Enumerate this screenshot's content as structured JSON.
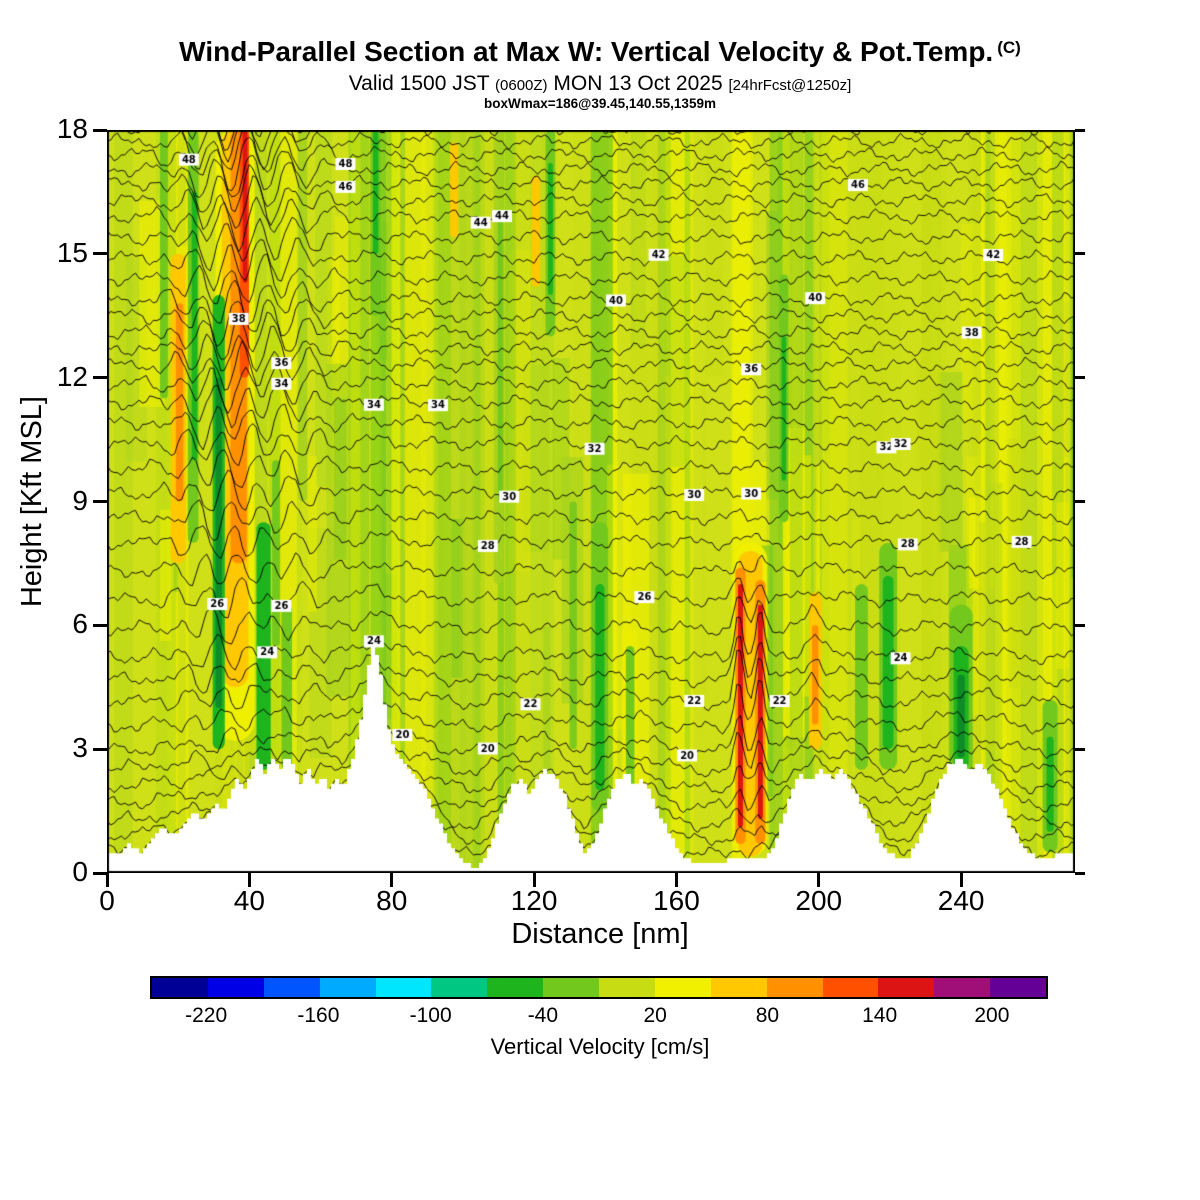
{
  "header": {
    "title_main": "Wind-Parallel Section at Max W: Vertical Velocity & Pot.Temp.",
    "title_unit": "(C)",
    "valid_pre": "Valid 1500 JST",
    "valid_small1": "(0600Z)",
    "valid_mid": "MON 13 Oct 2025",
    "valid_small2": "[24hrFcst@1250z]",
    "annotation": "boxWmax=186@39.45,140.55,1359m"
  },
  "chart_data": {
    "type": "heatmap",
    "title": "Wind-Parallel Section at Max W: Vertical Velocity & Pot.Temp. (C)",
    "subtitle": "Valid 1500 JST (0600Z) MON 13 Oct 2025 [24hrFcst@1250z]",
    "annotation": "boxWmax=186@39.45,140.55,1359m",
    "xlabel": "Distance [nm]",
    "ylabel": "Height [Kft MSL]",
    "xlim": [
      0,
      272
    ],
    "ylim": [
      0,
      18
    ],
    "xticks": [
      0,
      40,
      80,
      120,
      160,
      200,
      240
    ],
    "yticks": [
      0,
      3,
      6,
      9,
      12,
      15,
      18
    ],
    "fill_field": "Vertical Velocity [cm/s]",
    "contour_field": "Potential Temperature [C]",
    "wmax": {
      "value": 186,
      "lat": 39.45,
      "lon": 140.55,
      "height_m": 1359
    },
    "colorbar": {
      "label": "Vertical Velocity [cm/s]",
      "tick_values": [
        -220,
        -160,
        -100,
        -40,
        20,
        80,
        140,
        200
      ],
      "boundary_min": -250,
      "boundary_step": 30,
      "colors": [
        "#000096",
        "#0000E6",
        "#0055FF",
        "#00AAFF",
        "#00E6FF",
        "#00C882",
        "#1EB41E",
        "#73C81E",
        "#C8DC14",
        "#F0F000",
        "#FFC800",
        "#FF9100",
        "#FF5000",
        "#DC1414",
        "#A00F78",
        "#640096"
      ]
    },
    "background_colors": {
      "base": "#CFE018",
      "stripe_yellow": "#F0F000",
      "stripe_yellowgreen": "#C8DC14",
      "stripe_lightgreen": "#A5D21E",
      "stripe_green": "#73C81E"
    },
    "contours": {
      "theta_min": 14,
      "theta_max": 52,
      "interval": 1,
      "label_interval": 2,
      "label_min": 20,
      "theta_z_anchors": [
        [
          14,
          0.35
        ],
        [
          16,
          1.1
        ],
        [
          18,
          2.0
        ],
        [
          20,
          2.9
        ],
        [
          22,
          4.1
        ],
        [
          24,
          5.2
        ],
        [
          26,
          6.6
        ],
        [
          28,
          8.0
        ],
        [
          30,
          9.2
        ],
        [
          32,
          10.4
        ],
        [
          34,
          11.4
        ],
        [
          36,
          12.3
        ],
        [
          38,
          13.1
        ],
        [
          40,
          13.9
        ],
        [
          42,
          14.9
        ],
        [
          44,
          15.9
        ],
        [
          46,
          16.7
        ],
        [
          48,
          17.4
        ],
        [
          50,
          18.05
        ],
        [
          52,
          18.7
        ]
      ]
    },
    "terrain_profile": [
      [
        0,
        0.5
      ],
      [
        3,
        0.45
      ],
      [
        6,
        0.7
      ],
      [
        9,
        0.5
      ],
      [
        12,
        0.8
      ],
      [
        15,
        1.1
      ],
      [
        18,
        0.9
      ],
      [
        21,
        1.2
      ],
      [
        24,
        1.5
      ],
      [
        27,
        1.3
      ],
      [
        30,
        1.7
      ],
      [
        32,
        1.5
      ],
      [
        34,
        1.9
      ],
      [
        36,
        2.3
      ],
      [
        38,
        2.0
      ],
      [
        40,
        2.5
      ],
      [
        42,
        2.8
      ],
      [
        44,
        2.4
      ],
      [
        46,
        2.8
      ],
      [
        48,
        2.5
      ],
      [
        50,
        2.9
      ],
      [
        52,
        2.6
      ],
      [
        54,
        2.2
      ],
      [
        56,
        2.6
      ],
      [
        58,
        2.1
      ],
      [
        60,
        2.4
      ],
      [
        62,
        2.0
      ],
      [
        64,
        2.3
      ],
      [
        66,
        2.1
      ],
      [
        68,
        2.6
      ],
      [
        70,
        3.3
      ],
      [
        72,
        4.4
      ],
      [
        74,
        5.6
      ],
      [
        76,
        5.1
      ],
      [
        78,
        3.8
      ],
      [
        80,
        3.0
      ],
      [
        83,
        2.7
      ],
      [
        86,
        2.4
      ],
      [
        89,
        2.0
      ],
      [
        92,
        1.4
      ],
      [
        95,
        0.8
      ],
      [
        98,
        0.4
      ],
      [
        101,
        0.2
      ],
      [
        104,
        0.15
      ],
      [
        107,
        0.6
      ],
      [
        110,
        1.4
      ],
      [
        113,
        2.1
      ],
      [
        116,
        2.3
      ],
      [
        118,
        1.9
      ],
      [
        120,
        2.2
      ],
      [
        122,
        2.5
      ],
      [
        125,
        2.4
      ],
      [
        128,
        1.9
      ],
      [
        131,
        1.1
      ],
      [
        134,
        0.45
      ],
      [
        137,
        0.9
      ],
      [
        140,
        1.7
      ],
      [
        143,
        2.3
      ],
      [
        146,
        2.4
      ],
      [
        148,
        2.1
      ],
      [
        150,
        2.3
      ],
      [
        153,
        1.8
      ],
      [
        156,
        1.2
      ],
      [
        159,
        0.7
      ],
      [
        162,
        0.35
      ],
      [
        166,
        0.2
      ],
      [
        170,
        0.25
      ],
      [
        174,
        0.3
      ],
      [
        178,
        0.3
      ],
      [
        182,
        0.3
      ],
      [
        186,
        0.5
      ],
      [
        189,
        1.2
      ],
      [
        192,
        2.0
      ],
      [
        194,
        2.4
      ],
      [
        197,
        2.2
      ],
      [
        200,
        2.5
      ],
      [
        203,
        2.3
      ],
      [
        206,
        2.5
      ],
      [
        209,
        2.1
      ],
      [
        212,
        1.6
      ],
      [
        215,
        1.1
      ],
      [
        218,
        0.6
      ],
      [
        221,
        0.4
      ],
      [
        224,
        0.3
      ],
      [
        227,
        0.7
      ],
      [
        230,
        1.4
      ],
      [
        233,
        2.1
      ],
      [
        236,
        2.6
      ],
      [
        239,
        2.85
      ],
      [
        242,
        2.5
      ],
      [
        245,
        2.7
      ],
      [
        248,
        2.3
      ],
      [
        251,
        1.7
      ],
      [
        254,
        1.1
      ],
      [
        257,
        0.6
      ],
      [
        260,
        0.4
      ],
      [
        264,
        0.38
      ],
      [
        268,
        0.45
      ],
      [
        272,
        0.5
      ]
    ],
    "features": [
      {
        "kind": "updraft-halo",
        "x": 36,
        "w": 11,
        "zb": 3.2,
        "zt": 18,
        "c": "#F0F000",
        "a": 0.95
      },
      {
        "kind": "updraft",
        "x": 36,
        "w": 7.5,
        "zb": 4.5,
        "zt": 18,
        "c": "#FFC800",
        "a": 1
      },
      {
        "kind": "updraft",
        "x": 37,
        "w": 4.6,
        "zb": 7.5,
        "zt": 18,
        "c": "#FF9100",
        "a": 1
      },
      {
        "kind": "updraft-core",
        "x": 38.6,
        "w": 2.6,
        "zb": 12,
        "zt": 18,
        "c": "#FF5000",
        "a": 1
      },
      {
        "kind": "updraft-core",
        "x": 38.8,
        "w": 1.3,
        "zb": 14.3,
        "zt": 18,
        "c": "#DC1414",
        "a": 1
      },
      {
        "kind": "updraft",
        "x": 20,
        "w": 4.2,
        "zb": 7.5,
        "zt": 15,
        "c": "#FFC800",
        "a": 1
      },
      {
        "kind": "updraft",
        "x": 20.4,
        "w": 2.1,
        "zb": 9,
        "zt": 13.8,
        "c": "#FF9100",
        "a": 1
      },
      {
        "kind": "downdraft",
        "x": 16,
        "w": 2.2,
        "zb": 11.5,
        "zt": 18,
        "c": "#73C81E",
        "a": 1
      },
      {
        "kind": "downdraft",
        "x": 24.2,
        "w": 3.0,
        "zb": 8,
        "zt": 18,
        "c": "#73C81E",
        "a": 1
      },
      {
        "kind": "downdraft",
        "x": 24.6,
        "w": 1.6,
        "zb": 10,
        "zt": 16.5,
        "c": "#1EB41E",
        "a": 1
      },
      {
        "kind": "downdraft",
        "x": 31.4,
        "w": 3.4,
        "zb": 3,
        "zt": 14,
        "c": "#1EB41E",
        "a": 1
      },
      {
        "kind": "downdraft",
        "x": 31.4,
        "w": 1.8,
        "zb": 4,
        "zt": 12,
        "c": "#0F8C28",
        "a": 1
      },
      {
        "kind": "downdraft",
        "x": 44,
        "w": 4,
        "zb": 2.5,
        "zt": 8.5,
        "c": "#1EB41E",
        "a": 1
      },
      {
        "kind": "downdraft",
        "x": 47.5,
        "w": 2.2,
        "zb": 5.5,
        "zt": 10,
        "c": "#73C81E",
        "a": 1
      },
      {
        "kind": "downdraft",
        "x": 50.5,
        "w": 3,
        "zb": 2.5,
        "zt": 6.5,
        "c": "#73C81E",
        "a": 1
      },
      {
        "kind": "downdraft",
        "x": 55,
        "w": 2.5,
        "zb": 9,
        "zt": 18,
        "c": "#A5D21E",
        "a": 0.9
      },
      {
        "kind": "downdraft",
        "x": 75.5,
        "w": 3,
        "zb": 13.5,
        "zt": 18,
        "c": "#73C81E",
        "a": 1
      },
      {
        "kind": "downdraft",
        "x": 75.5,
        "w": 1.5,
        "zb": 15,
        "zt": 18,
        "c": "#1EB41E",
        "a": 1
      },
      {
        "kind": "updraft",
        "x": 97.5,
        "w": 2.3,
        "zb": 15.4,
        "zt": 17.7,
        "c": "#FFC800",
        "a": 1
      },
      {
        "kind": "downdraft",
        "x": 110,
        "w": 2.6,
        "zb": 7,
        "zt": 18,
        "c": "#A5D21E",
        "a": 0.9
      },
      {
        "kind": "downdraft",
        "x": 110.5,
        "w": 1.4,
        "zb": 9,
        "zt": 16,
        "c": "#73C81E",
        "a": 1
      },
      {
        "kind": "updraft",
        "x": 120.5,
        "w": 2.4,
        "zb": 14.2,
        "zt": 16.9,
        "c": "#FFC800",
        "a": 1
      },
      {
        "kind": "downdraft",
        "x": 124.6,
        "w": 2.7,
        "zb": 13,
        "zt": 18,
        "c": "#73C81E",
        "a": 1
      },
      {
        "kind": "downdraft",
        "x": 124.6,
        "w": 1.4,
        "zb": 14,
        "zt": 17.2,
        "c": "#1EB41E",
        "a": 1
      },
      {
        "kind": "downdraft",
        "x": 131,
        "w": 2,
        "zb": 3,
        "zt": 9,
        "c": "#73C81E",
        "a": 0.9
      },
      {
        "kind": "downdraft",
        "x": 138.5,
        "w": 4.6,
        "zb": 1.5,
        "zt": 8.5,
        "c": "#73C81E",
        "a": 1
      },
      {
        "kind": "downdraft",
        "x": 138.5,
        "w": 2.6,
        "zb": 2,
        "zt": 7,
        "c": "#1EB41E",
        "a": 1
      },
      {
        "kind": "downdraft",
        "x": 147,
        "w": 2.4,
        "zb": 2,
        "zt": 5.5,
        "c": "#73C81E",
        "a": 1
      },
      {
        "kind": "updraft-halo",
        "x": 180.8,
        "w": 9.5,
        "zb": 0.4,
        "zt": 8,
        "c": "#F0F000",
        "a": 0.95
      },
      {
        "kind": "updraft",
        "x": 180.8,
        "w": 6.8,
        "zb": 0.4,
        "zt": 7.8,
        "c": "#FFC800",
        "a": 1
      },
      {
        "kind": "updraft",
        "x": 178,
        "w": 2.9,
        "zb": 0.7,
        "zt": 7.4,
        "c": "#FF9100",
        "a": 1
      },
      {
        "kind": "updraft",
        "x": 183.6,
        "w": 2.9,
        "zb": 0.7,
        "zt": 7.1,
        "c": "#FF9100",
        "a": 1
      },
      {
        "kind": "updraft-core",
        "x": 178,
        "w": 1.4,
        "zb": 1.1,
        "zt": 7.0,
        "c": "#DC1414",
        "a": 1
      },
      {
        "kind": "updraft-core",
        "x": 183.6,
        "w": 1.4,
        "zb": 1.3,
        "zt": 6.5,
        "c": "#DC1414",
        "a": 1
      },
      {
        "kind": "downdraft",
        "x": 188.8,
        "w": 2,
        "zb": 0.4,
        "zt": 8,
        "c": "#A5D21E",
        "a": 0.9
      },
      {
        "kind": "downdraft",
        "x": 190.2,
        "w": 2.6,
        "zb": 8.5,
        "zt": 14.5,
        "c": "#73C81E",
        "a": 1
      },
      {
        "kind": "downdraft",
        "x": 190.2,
        "w": 1.3,
        "zb": 9.5,
        "zt": 13,
        "c": "#1EB41E",
        "a": 1
      },
      {
        "kind": "updraft",
        "x": 199,
        "w": 3.6,
        "zb": 3,
        "zt": 6.8,
        "c": "#FFC800",
        "a": 1
      },
      {
        "kind": "updraft",
        "x": 199,
        "w": 1.8,
        "zb": 3.6,
        "zt": 6,
        "c": "#FF9100",
        "a": 1
      },
      {
        "kind": "downdraft",
        "x": 212,
        "w": 3.6,
        "zb": 2.5,
        "zt": 7,
        "c": "#73C81E",
        "a": 1
      },
      {
        "kind": "downdraft",
        "x": 219.5,
        "w": 5,
        "zb": 2.5,
        "zt": 8,
        "c": "#73C81E",
        "a": 1
      },
      {
        "kind": "downdraft",
        "x": 219.5,
        "w": 3,
        "zb": 3,
        "zt": 7.2,
        "c": "#1EB41E",
        "a": 1
      },
      {
        "kind": "downdraft",
        "x": 240,
        "w": 6.5,
        "zb": 2.4,
        "zt": 6.5,
        "c": "#73C81E",
        "a": 1
      },
      {
        "kind": "downdraft",
        "x": 240,
        "w": 4.2,
        "zb": 2.5,
        "zt": 5.5,
        "c": "#1EB41E",
        "a": 1
      },
      {
        "kind": "downdraft",
        "x": 240,
        "w": 2.1,
        "zb": 2.8,
        "zt": 4.8,
        "c": "#0F8C28",
        "a": 1
      },
      {
        "kind": "downdraft",
        "x": 265,
        "w": 4.2,
        "zb": 0.5,
        "zt": 4.2,
        "c": "#73C81E",
        "a": 1
      },
      {
        "kind": "downdraft",
        "x": 265,
        "w": 2,
        "zb": 1,
        "zt": 3.3,
        "c": "#1EB41E",
        "a": 1
      }
    ]
  }
}
